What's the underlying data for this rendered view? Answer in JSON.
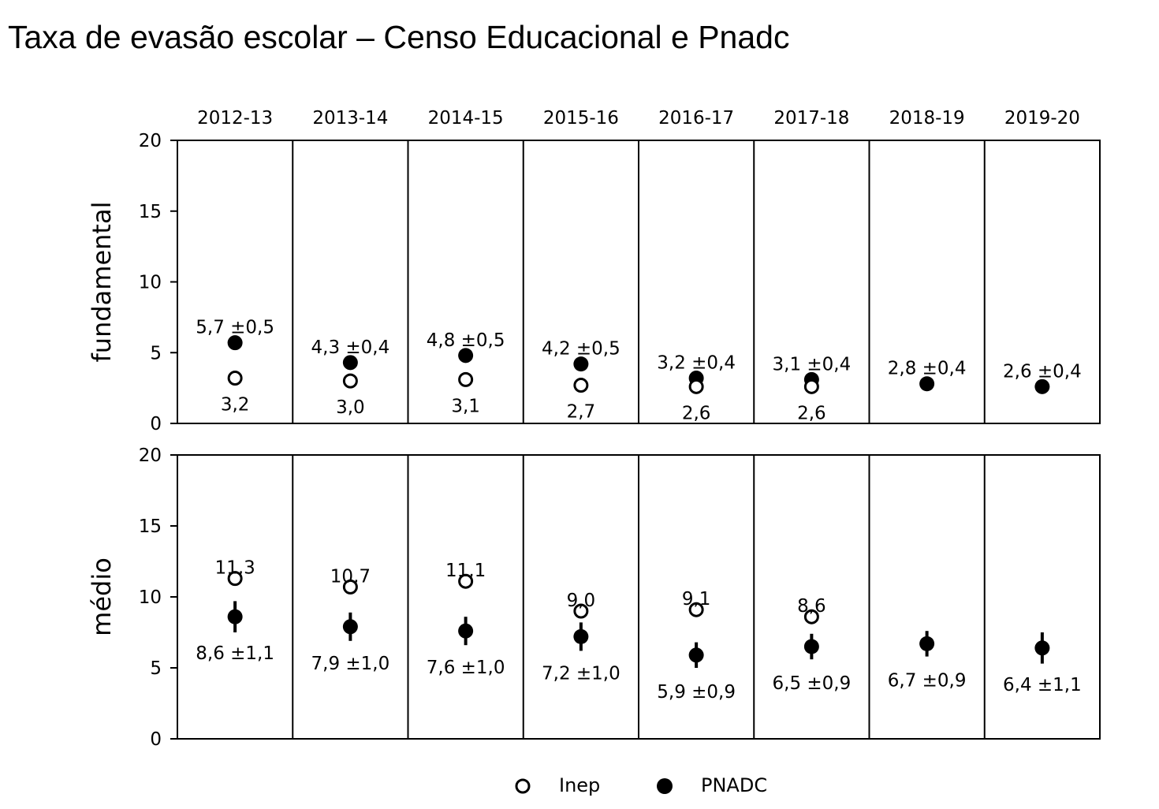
{
  "title": "Taxa de evasão escolar – Censo Educacional e Pnadc",
  "chart_data": {
    "type": "scatter",
    "title": "Taxa de evasão escolar – Censo Educacional e Pnadc",
    "categories": [
      "2012-13",
      "2013-14",
      "2014-15",
      "2015-16",
      "2016-17",
      "2017-18",
      "2018-19",
      "2019-20"
    ],
    "ylim": [
      0,
      20
    ],
    "yticks": [
      0,
      5,
      10,
      15,
      20
    ],
    "grid": false,
    "legend_position": "bottom",
    "legend": [
      {
        "name": "Inep",
        "marker": "open-circle"
      },
      {
        "name": "PNADC",
        "marker": "filled-circle"
      }
    ],
    "panels": [
      {
        "ylabel": "fundamental",
        "series": [
          {
            "name": "Inep",
            "values": [
              3.2,
              3.0,
              3.1,
              2.7,
              2.6,
              2.6,
              null,
              null
            ],
            "labels": [
              "3,2",
              "3,0",
              "3,1",
              "2,7",
              "2,6",
              "2,6",
              null,
              null
            ]
          },
          {
            "name": "PNADC",
            "values": [
              5.7,
              4.3,
              4.8,
              4.2,
              3.2,
              3.1,
              2.8,
              2.6
            ],
            "errors": [
              0.5,
              0.4,
              0.5,
              0.5,
              0.4,
              0.4,
              0.4,
              0.4
            ],
            "labels": [
              "5,7 ±0,5",
              "4,3 ±0,4",
              "4,8 ±0,5",
              "4,2 ±0,5",
              "3,2 ±0,4",
              "3,1 ±0,4",
              "2,8 ±0,4",
              "2,6 ±0,4"
            ]
          }
        ]
      },
      {
        "ylabel": "médio",
        "series": [
          {
            "name": "Inep",
            "values": [
              11.3,
              10.7,
              11.1,
              9.0,
              9.1,
              8.6,
              null,
              null
            ],
            "labels": [
              "11,3",
              "10,7",
              "11,1",
              "9,0",
              "9,1",
              "8,6",
              null,
              null
            ]
          },
          {
            "name": "PNADC",
            "values": [
              8.6,
              7.9,
              7.6,
              7.2,
              5.9,
              6.5,
              6.7,
              6.4
            ],
            "errors": [
              1.1,
              1.0,
              1.0,
              1.0,
              0.9,
              0.9,
              0.9,
              1.1
            ],
            "labels": [
              "8,6 ±1,1",
              "7,9 ±1,0",
              "7,6 ±1,0",
              "7,2 ±1,0",
              "5,9 ±0,9",
              "6,5 ±0,9",
              "6,7 ±0,9",
              "6,4 ±1,1"
            ]
          }
        ]
      }
    ]
  }
}
